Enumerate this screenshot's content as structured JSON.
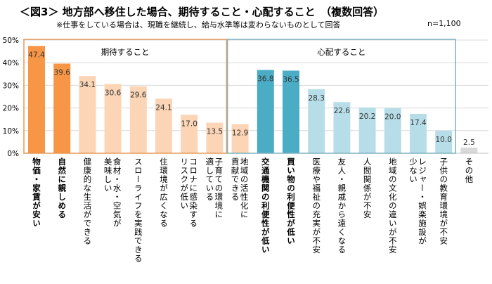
{
  "title": "＜図3＞ 地方部へ移住した場合、期待すること・心配すること　（複数回答）",
  "subtitle": "※仕事をしている場合は、現職を継続し、給与水準等は変わらないものとして回答",
  "sample_size": "n=1,100",
  "chart_data": {
    "type": "bar",
    "ylim": [
      0,
      50
    ],
    "yticks": [
      "0%",
      "10%",
      "20%",
      "30%",
      "40%",
      "50%"
    ],
    "grid": true,
    "groups": [
      {
        "label": "期待すること",
        "color": "#E59A5A",
        "range": [
          0,
          7
        ]
      },
      {
        "label": "心配すること",
        "color": "#7FB2C0",
        "range": [
          8,
          16
        ]
      }
    ],
    "categories": [
      "物価・家賃が安い",
      "自然に親しめる",
      "健康的な生活ができる",
      "食材・水・空気が\n美味しい",
      "スローライフを実践できる",
      "住環境が広くなる",
      "コロナに感染する\nリスクが低い",
      "子育ての環境に\n適している",
      "地域の活性化に\n貢献できる",
      "交通機関の利便性が低い",
      "買い物の利便性が低い",
      "医療や福祉の充実が不安",
      "友人・親戚から遠くなる",
      "人間関係が不安",
      "地域の文化の違いが不安",
      "レジャー・娯楽施設が\n少ない",
      "子供の教育環境が不安",
      "その他"
    ],
    "values": [
      47.4,
      39.6,
      34.1,
      30.6,
      29.6,
      24.1,
      17.0,
      13.5,
      12.9,
      36.8,
      36.5,
      28.3,
      22.6,
      20.2,
      20.0,
      17.4,
      10.0,
      2.5
    ],
    "value_labels": [
      "47.4",
      "39.6",
      "34.1",
      "30.6",
      "29.6",
      "24.1",
      "17.0",
      "13.5",
      "12.9",
      "36.8",
      "36.5",
      "28.3",
      "22.6",
      "20.2",
      "20.0",
      "17.4",
      "10.0",
      "2.5"
    ],
    "bold_categories": [
      0,
      1,
      9,
      10
    ],
    "colors": [
      "#F79646",
      "#F79646",
      "#FBD5B5",
      "#FBD5B5",
      "#FBD5B5",
      "#FBD5B5",
      "#FBD5B5",
      "#FBD5B5",
      "#FBD5B5",
      "#4BACC6",
      "#4BACC6",
      "#B7DEE8",
      "#B7DEE8",
      "#B7DEE8",
      "#B7DEE8",
      "#B7DEE8",
      "#B7DEE8",
      "#D9D9D9"
    ]
  }
}
